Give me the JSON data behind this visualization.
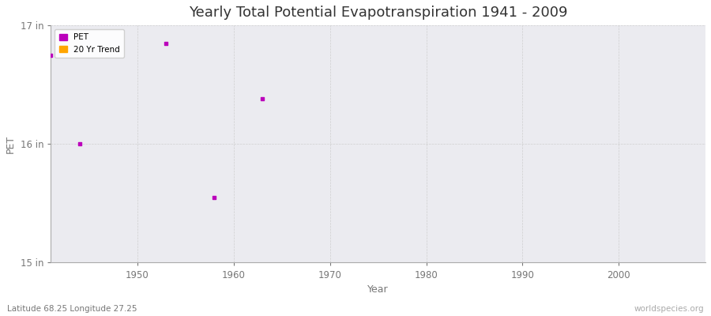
{
  "title": "Yearly Total Potential Evapotranspiration 1941 - 2009",
  "xlabel": "Year",
  "ylabel": "PET",
  "xlim": [
    1941,
    2009
  ],
  "ylim": [
    15,
    17
  ],
  "yticks": [
    15,
    16,
    17
  ],
  "ytick_labels": [
    "15 in",
    "16 in",
    "17 in"
  ],
  "xticks": [
    1950,
    1960,
    1970,
    1980,
    1990,
    2000
  ],
  "pet_years": [
    1941,
    1944,
    1953,
    1958,
    1963
  ],
  "pet_values": [
    16.75,
    16.0,
    16.85,
    15.55,
    16.38
  ],
  "pet_color": "#bb00bb",
  "trend_color": "#ffa500",
  "figure_bg_color": "#ffffff",
  "plot_bg_color": "#ebebf0",
  "grid_color": "#cccccc",
  "subtitle": "Latitude 68.25 Longitude 27.25",
  "watermark": "worldspecies.org",
  "title_fontsize": 13,
  "axis_label_fontsize": 9,
  "tick_fontsize": 8.5
}
